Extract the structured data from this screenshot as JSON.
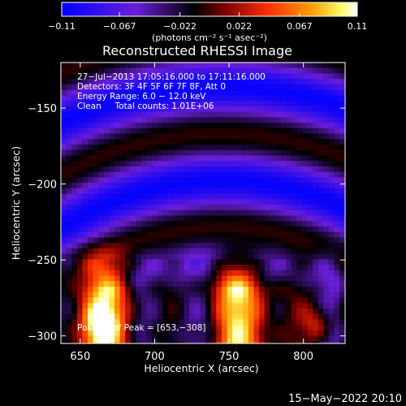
{
  "chart_data": {
    "type": "heatmap",
    "title": "Reconstructed RHESSI Image",
    "xlabel": "Heliocentric X (arcsec)",
    "ylabel": "Heliocentric Y (arcsec)",
    "xlim": [
      637,
      828
    ],
    "ylim": [
      -305,
      -120
    ],
    "x_ticks": [
      650,
      700,
      750,
      800
    ],
    "x_tick_labels": [
      "650",
      "700",
      "750",
      "800"
    ],
    "y_ticks": [
      -150,
      -200,
      -250,
      -300
    ],
    "y_tick_labels": [
      "−150",
      "−200",
      "−250",
      "−300"
    ],
    "colorbar": {
      "range": [
        -0.11,
        0.11
      ],
      "ticks": [
        -0.11,
        -0.067,
        -0.022,
        0.022,
        0.067,
        0.11
      ],
      "tick_labels": [
        "−0.11",
        "−0.067",
        "−0.022",
        "0.022",
        "0.067",
        "0.11"
      ],
      "units_label": "(photons cm⁻² s⁻¹ asec⁻²)",
      "colormap": [
        "#0000ff",
        "#6a1ed8",
        "#000000",
        "#7a0000",
        "#ff3000",
        "#ffa000",
        "#ffff70",
        "#ffffff"
      ]
    },
    "annotations": [
      "27−Jul−2013 17:05:16.000 to 17:11:16.000",
      "Detectors: 3F 4F 5F 6F 7F 8F, Att 0",
      "Energy Range: 6.0 − 12.0 keV",
      "Clean     Total counts: 1.01E+06"
    ],
    "peak_label": "Position of Peak = [653,−308]",
    "peak_position": [
      653,
      -308
    ],
    "grid": false
  },
  "footer": {
    "date": "15−May−2022 20:10"
  }
}
